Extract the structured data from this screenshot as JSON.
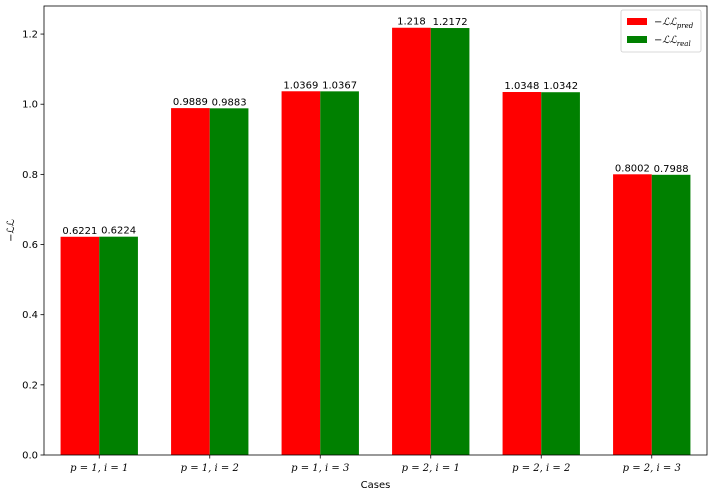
{
  "chart_data": {
    "type": "bar",
    "categories": [
      "p = 1, i = 1",
      "p = 1, i = 2",
      "p = 1, i = 3",
      "p = 2, i = 1",
      "p = 2, i = 2",
      "p = 2, i = 3"
    ],
    "series": [
      {
        "name": "−ℒℒ_pred",
        "legend_main": "−ℒℒ",
        "legend_sub": "pred",
        "color": "#ff0000",
        "values": [
          0.6221,
          0.9889,
          1.0369,
          1.218,
          1.0348,
          0.8002
        ],
        "labels": [
          "0.6221",
          "0.9889",
          "1.0369",
          "1.218",
          "1.0348",
          "0.8002"
        ]
      },
      {
        "name": "−ℒℒ_real",
        "legend_main": "−ℒℒ",
        "legend_sub": "real",
        "color": "#008000",
        "values": [
          0.6224,
          0.9883,
          1.0367,
          1.2172,
          1.0342,
          0.7988
        ],
        "labels": [
          "0.6224",
          "0.9883",
          "1.0367",
          "1.2172",
          "1.0342",
          "0.7988"
        ]
      }
    ],
    "title": "",
    "xlabel": "Cases",
    "ylabel": "−ℒℒ",
    "ylim": [
      0,
      1.28
    ],
    "yticks": [
      0.0,
      0.2,
      0.4,
      0.6,
      0.8,
      1.0,
      1.2
    ],
    "ytick_labels": [
      "0.0",
      "0.2",
      "0.4",
      "0.6",
      "0.8",
      "1.0",
      "1.2"
    ],
    "grid": false,
    "legend_position": "top-right"
  }
}
